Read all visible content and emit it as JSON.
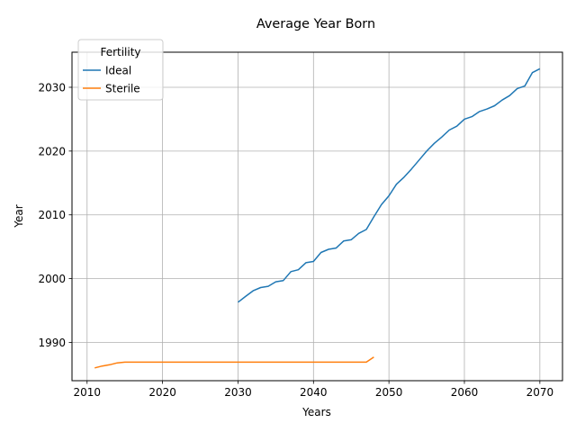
{
  "chart_data": {
    "type": "line",
    "title": "Average Year Born",
    "xlabel": "Years",
    "ylabel": "Year",
    "xlim": [
      2008,
      2073
    ],
    "ylim": [
      1984,
      2035.5
    ],
    "xticks": [
      2010,
      2020,
      2030,
      2040,
      2050,
      2060,
      2070
    ],
    "yticks": [
      1990,
      2000,
      2010,
      2020,
      2030
    ],
    "grid": true,
    "legend": {
      "title": "Fertility",
      "placement": "top-left"
    },
    "series": [
      {
        "name": "Ideal",
        "color": "#1f77b4",
        "x": [
          2030,
          2031,
          2032,
          2033,
          2034,
          2035,
          2036,
          2037,
          2038,
          2039,
          2040,
          2041,
          2042,
          2043,
          2044,
          2045,
          2046,
          2047,
          2048,
          2049,
          2050,
          2051,
          2052,
          2053,
          2054,
          2055,
          2056,
          2057,
          2058,
          2059,
          2060,
          2061,
          2062,
          2063,
          2064,
          2065,
          2066,
          2067,
          2068,
          2069,
          2070
        ],
        "y": [
          1996.3,
          1997.2,
          1998.1,
          1998.6,
          1998.8,
          1999.5,
          1999.7,
          2001.1,
          2001.4,
          2002.5,
          2002.7,
          2004.1,
          2004.6,
          2004.8,
          2005.9,
          2006.1,
          2007.1,
          2007.7,
          2009.7,
          2011.6,
          2013.0,
          2014.8,
          2015.9,
          2017.2,
          2018.6,
          2020.0,
          2021.2,
          2022.2,
          2023.3,
          2023.9,
          2025.0,
          2025.4,
          2026.2,
          2026.6,
          2027.1,
          2028.0,
          2028.7,
          2029.8,
          2030.2,
          2032.3,
          2032.9
        ]
      },
      {
        "name": "Sterile",
        "color": "#ff7f0e",
        "x": [
          2011,
          2012,
          2013,
          2014,
          2015,
          2016,
          2020,
          2025,
          2030,
          2035,
          2040,
          2045,
          2046,
          2047,
          2048
        ],
        "y": [
          1986.0,
          1986.3,
          1986.5,
          1986.8,
          1986.9,
          1986.9,
          1986.9,
          1986.9,
          1986.9,
          1986.9,
          1986.9,
          1986.9,
          1986.9,
          1986.9,
          1987.7
        ]
      }
    ]
  }
}
